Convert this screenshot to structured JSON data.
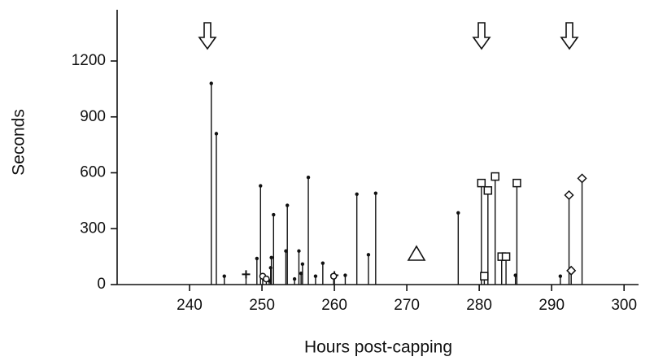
{
  "chart_data": {
    "type": "stem",
    "x_label": "Hours post-capping",
    "y_label": "Seconds",
    "xlim": [
      230,
      302
    ],
    "xticks": [
      240,
      250,
      260,
      270,
      280,
      290,
      300
    ],
    "ylim": [
      0,
      1475
    ],
    "yticks": [
      0,
      300,
      600,
      900,
      1200
    ],
    "color": "#111111",
    "series": [
      {
        "marker": "dot",
        "x": [
          243.0,
          243.7,
          244.8,
          249.3,
          249.8,
          251.0,
          251.2,
          251.3,
          251.6,
          253.3,
          253.5,
          254.5,
          255.1,
          255.4,
          255.6,
          256.4,
          257.4,
          258.4,
          261.5,
          263.1,
          264.7,
          265.7,
          277.1,
          285.0,
          291.2
        ],
        "values": [
          1080,
          810,
          45,
          140,
          530,
          20,
          90,
          145,
          375,
          180,
          425,
          30,
          180,
          60,
          110,
          575,
          45,
          115,
          50,
          485,
          160,
          490,
          385,
          50,
          45
        ]
      },
      {
        "marker": "square",
        "x": [
          280.3,
          280.7,
          281.2,
          282.2,
          283.1,
          283.7,
          285.2
        ],
        "values": [
          545,
          45,
          505,
          580,
          150,
          150,
          545
        ]
      },
      {
        "marker": "diamond",
        "x": [
          292.4,
          292.7,
          294.2
        ],
        "values": [
          480,
          75,
          570
        ]
      },
      {
        "marker": "plus",
        "x": [
          247.8,
          260.0
        ],
        "values": [
          55,
          50
        ]
      },
      {
        "marker": "circle",
        "x": [
          250.1,
          250.6,
          259.9
        ],
        "values": [
          45,
          30,
          45
        ]
      }
    ]
  }
}
